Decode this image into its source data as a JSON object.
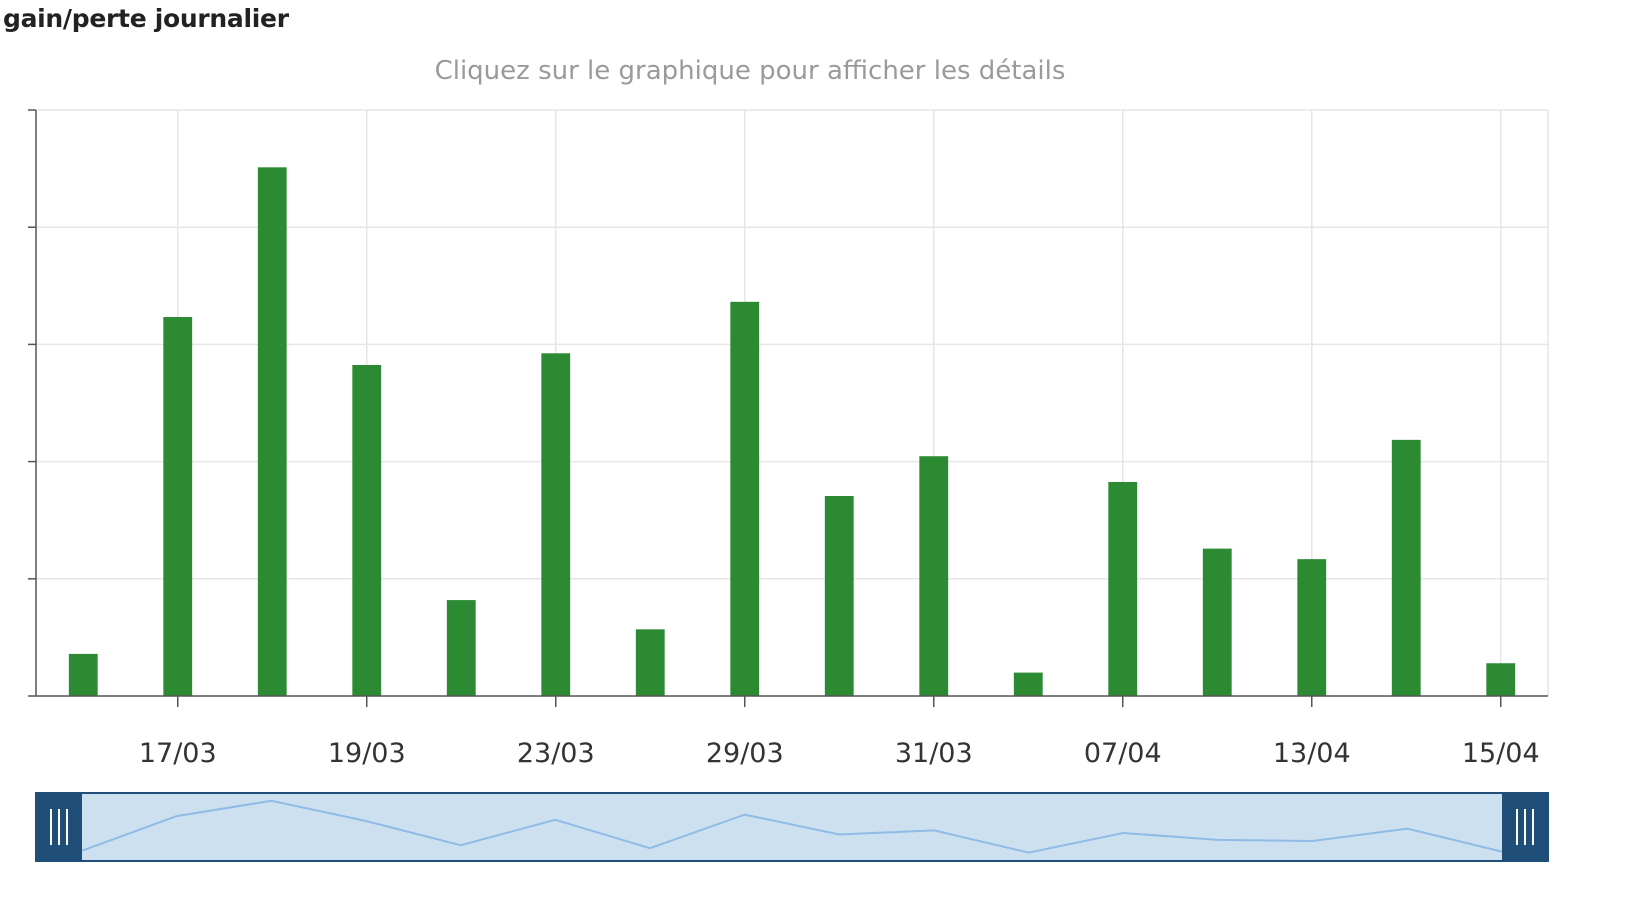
{
  "header": {
    "title": "gain/perte journalier",
    "subtitle": "Cliquez sur le graphique pour afficher les détails"
  },
  "colors": {
    "bar": "#2c8a32",
    "grid": "#e6e6e6",
    "axis": "#555555",
    "navigator_fill": "#cde0f0",
    "navigator_line": "#8fbbe6",
    "navigator_handle": "#1f4e79"
  },
  "chart_data": {
    "type": "bar",
    "title": "gain/perte journalier",
    "subtitle": "Cliquez sur le graphique pour afficher les détails",
    "tick_labels": [
      "17/03",
      "19/03",
      "23/03",
      "29/03",
      "31/03",
      "07/04",
      "13/04",
      "15/04"
    ],
    "values": [
      0.36,
      3.24,
      4.52,
      2.83,
      0.82,
      2.93,
      0.57,
      3.37,
      1.71,
      2.05,
      0.2,
      1.83,
      1.26,
      1.17,
      2.19,
      0.28
    ],
    "ylim": [
      0,
      5
    ],
    "grid": true,
    "legend": "none",
    "navigator": true
  }
}
